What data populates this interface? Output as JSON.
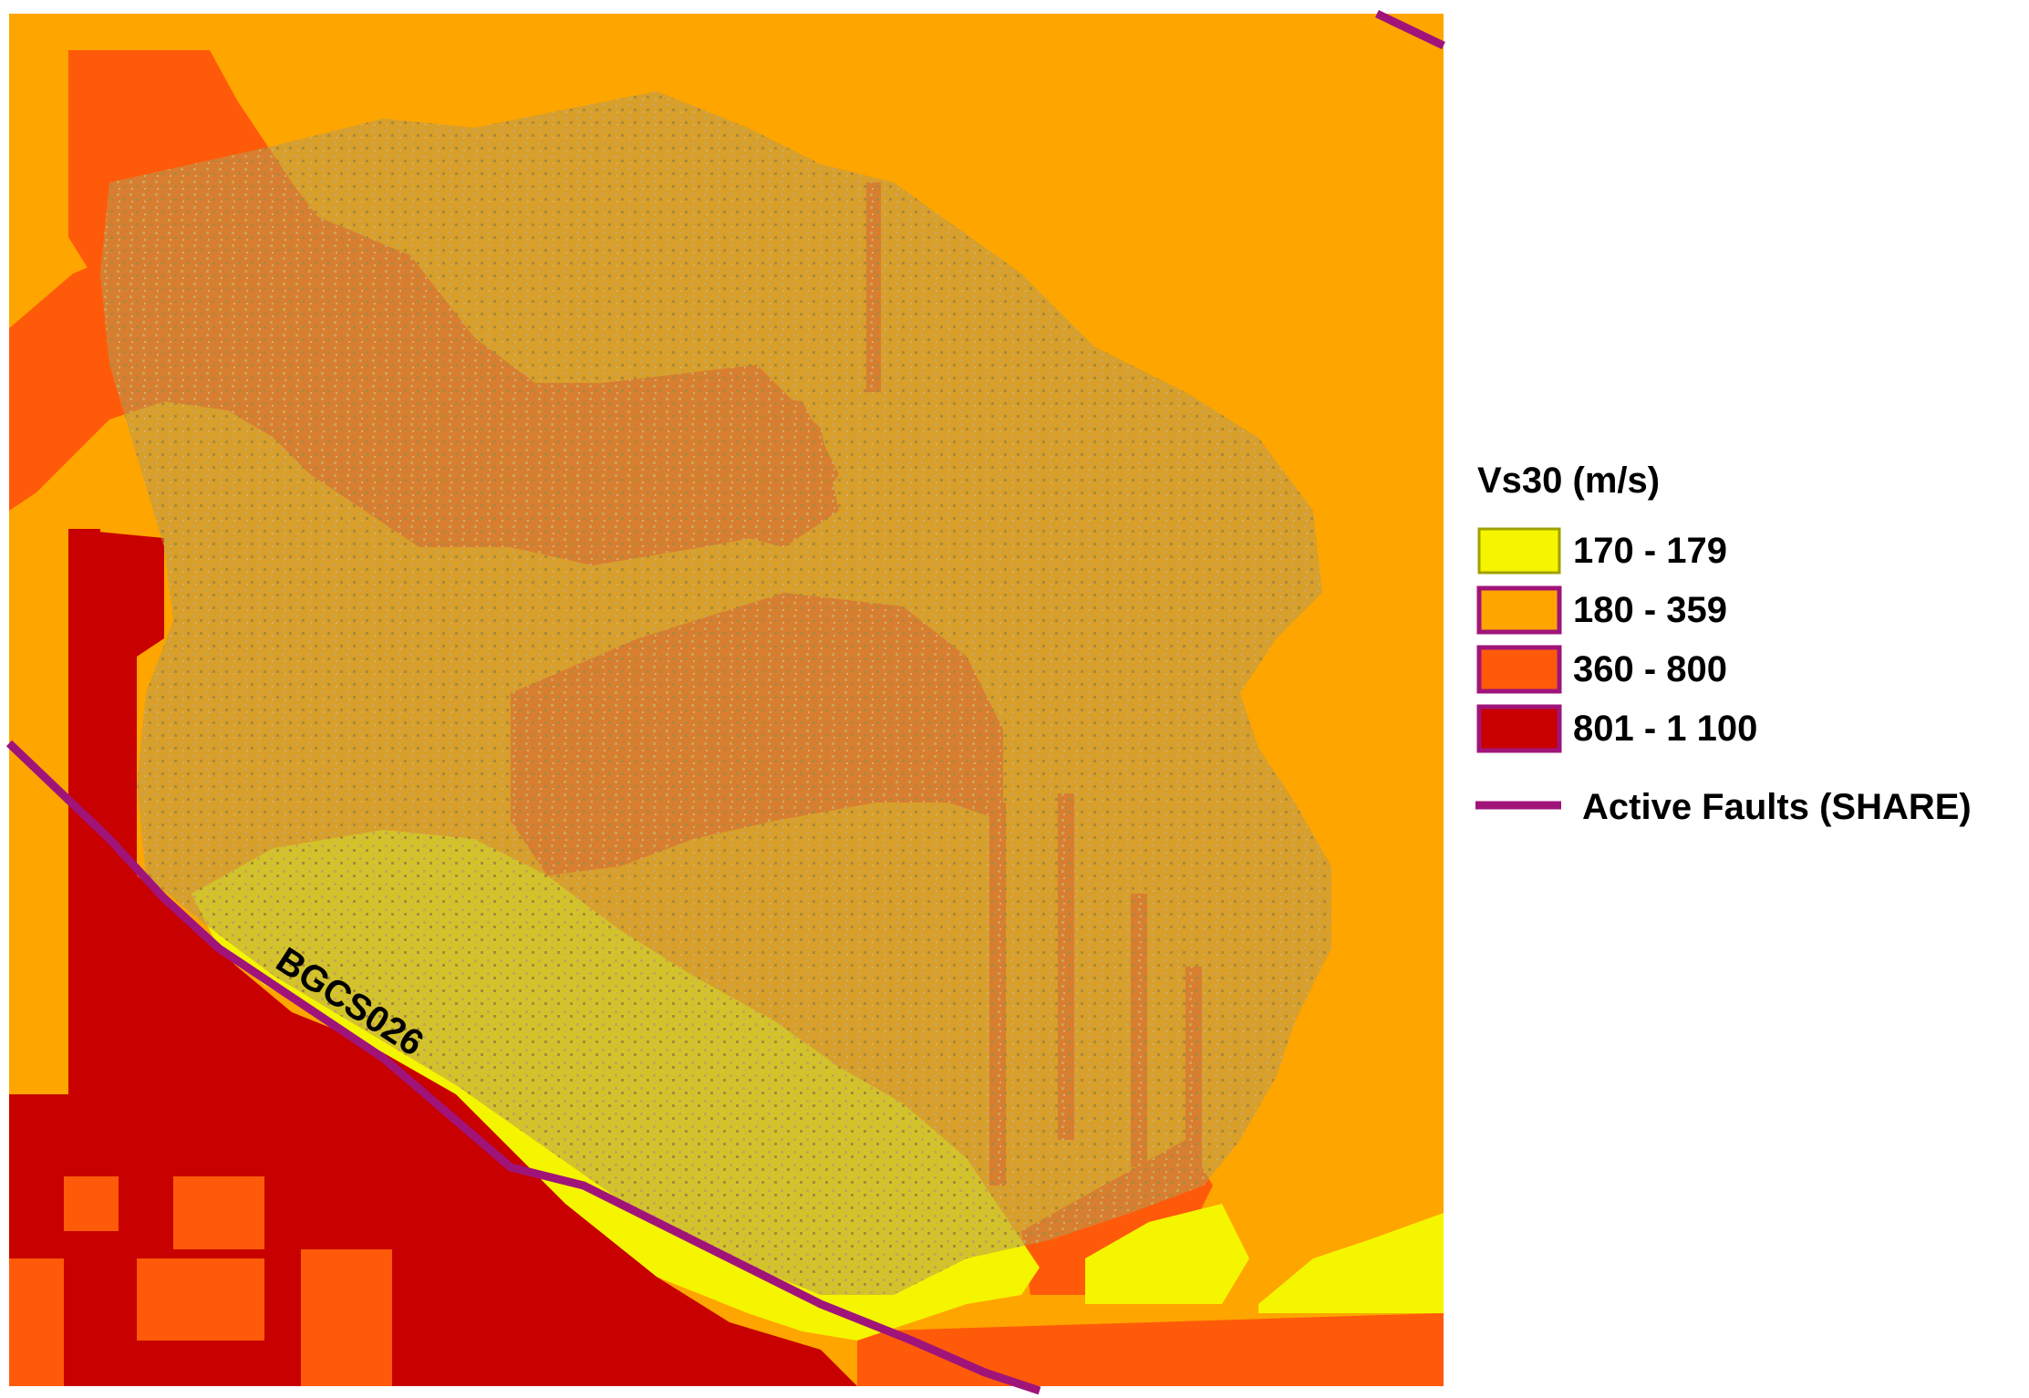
{
  "legend": {
    "title": "Vs30 (m/s)",
    "classes": [
      {
        "label": "170 - 179",
        "color": "#f5f500"
      },
      {
        "label": "180 - 359",
        "color": "#ffa500"
      },
      {
        "label": "360 - 800",
        "color": "#ff5a0a"
      },
      {
        "label": "801 - 1 100",
        "color": "#c80000"
      }
    ],
    "fault_label": "Active Faults (SHARE)",
    "fault_color": "#a0147a"
  },
  "fault_name": "BGCS026",
  "urban_color": "#b89a4e"
}
